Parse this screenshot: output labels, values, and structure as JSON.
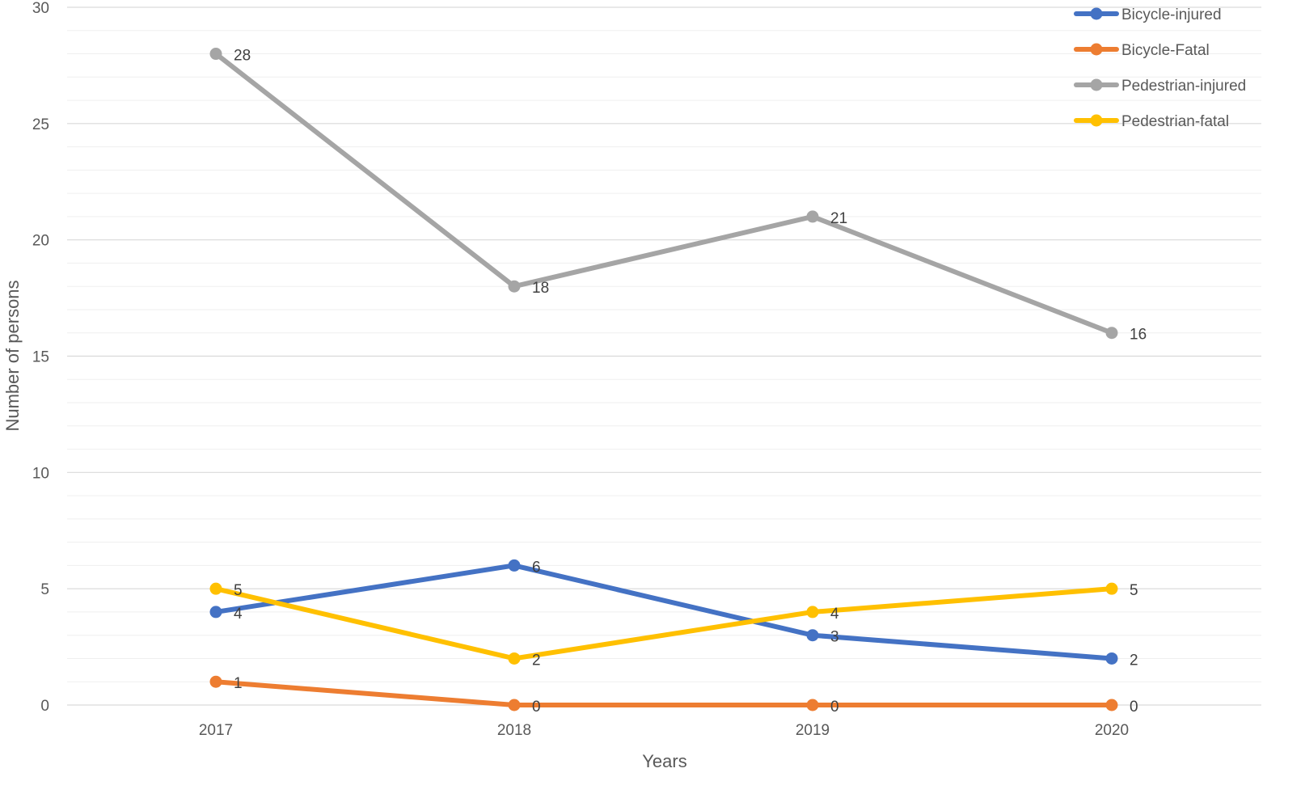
{
  "chart_data": {
    "type": "line",
    "title": "",
    "xlabel": "Years",
    "ylabel": "Number of persons",
    "categories": [
      "2017",
      "2018",
      "2019",
      "2020"
    ],
    "ylim": [
      0,
      30
    ],
    "yticks": [
      "0",
      "5",
      "10",
      "15",
      "20",
      "25",
      "30"
    ],
    "grid": true,
    "legend_position": "top-right",
    "series": [
      {
        "name": "Bicycle-injured",
        "color": "#4472C4",
        "values": [
          4,
          6,
          3,
          2
        ]
      },
      {
        "name": "Bicycle-Fatal",
        "color": "#ED7D31",
        "values": [
          1,
          0,
          0,
          0
        ]
      },
      {
        "name": "Pedestrian-injured",
        "color": "#A5A5A5",
        "values": [
          28,
          18,
          21,
          16
        ]
      },
      {
        "name": "Pedestrian-fatal",
        "color": "#FFC000",
        "values": [
          5,
          2,
          4,
          5
        ]
      }
    ]
  }
}
